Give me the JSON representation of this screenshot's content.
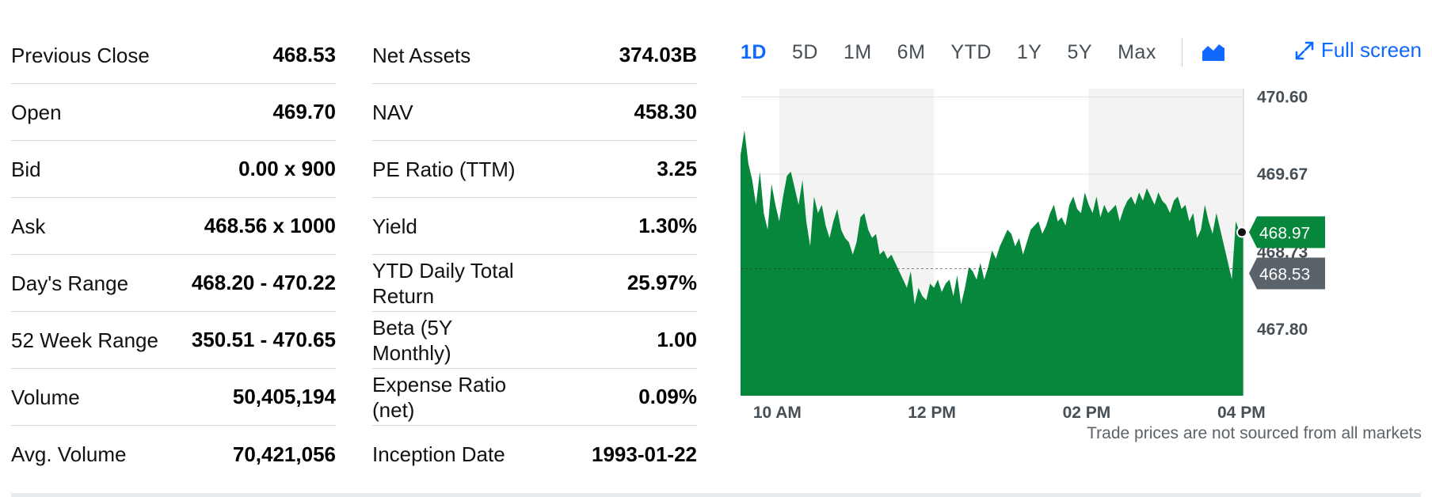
{
  "stats_left": [
    {
      "label": "Previous Close",
      "value": "468.53"
    },
    {
      "label": "Open",
      "value": "469.70"
    },
    {
      "label": "Bid",
      "value": "0.00 x 900"
    },
    {
      "label": "Ask",
      "value": "468.56 x 1000"
    },
    {
      "label": "Day's Range",
      "value": "468.20 - 470.22"
    },
    {
      "label": "52 Week Range",
      "value": "350.51 - 470.65"
    },
    {
      "label": "Volume",
      "value": "50,405,194"
    },
    {
      "label": "Avg. Volume",
      "value": "70,421,056"
    }
  ],
  "stats_right": [
    {
      "label": "Net Assets",
      "value": "374.03B"
    },
    {
      "label": "NAV",
      "value": "458.30"
    },
    {
      "label": "PE Ratio (TTM)",
      "value": "3.25"
    },
    {
      "label": "Yield",
      "value": "1.30%"
    },
    {
      "label": "YTD Daily Total Return",
      "value": "25.97%"
    },
    {
      "label": "Beta (5Y Monthly)",
      "value": "1.00"
    },
    {
      "label": "Expense Ratio (net)",
      "value": "0.09%"
    },
    {
      "label": "Inception Date",
      "value": "1993-01-22"
    }
  ],
  "range_tabs": [
    "1D",
    "5D",
    "1M",
    "6M",
    "YTD",
    "1Y",
    "5Y",
    "Max"
  ],
  "active_range": "1D",
  "chart_type_icon": "area-chart-icon",
  "fullscreen": {
    "label": "Full screen",
    "icon": "expand-icon"
  },
  "footnote": "Trade prices are not sourced from all markets",
  "colors": {
    "accent": "#0f69ff",
    "price_area": "#07873b",
    "prev_close_tag": "#5b636a",
    "session_shade": "#f3f3f3"
  },
  "chart_data": {
    "type": "area",
    "x_unit": "hours (9.5 = 9:30 AM, 16 = 4 PM)",
    "x_ticks": [
      {
        "x": 10,
        "label": "10 AM"
      },
      {
        "x": 12,
        "label": "12 PM"
      },
      {
        "x": 14,
        "label": "02 PM"
      },
      {
        "x": 16,
        "label": "04 PM"
      }
    ],
    "xlim": [
      9.5,
      16
    ],
    "y_ticks": [
      470.6,
      469.67,
      468.73,
      467.8
    ],
    "y_tick_labels": [
      "470.60",
      "469.67",
      "468.73",
      "467.80"
    ],
    "ylim": [
      467.0,
      470.7
    ],
    "grid": true,
    "shaded_bands": [
      [
        10,
        12
      ],
      [
        14,
        16
      ]
    ],
    "last_price": {
      "value": 468.97,
      "label": "468.97"
    },
    "previous_close": {
      "value": 468.53,
      "label": "468.53"
    },
    "price_series": {
      "x": [
        9.5,
        9.55,
        9.6,
        9.65,
        9.7,
        9.75,
        9.8,
        9.85,
        9.9,
        9.95,
        10.0,
        10.05,
        10.1,
        10.15,
        10.2,
        10.25,
        10.3,
        10.35,
        10.4,
        10.45,
        10.5,
        10.55,
        10.6,
        10.65,
        10.7,
        10.75,
        10.8,
        10.85,
        10.9,
        10.95,
        11.0,
        11.05,
        11.1,
        11.15,
        11.2,
        11.25,
        11.3,
        11.35,
        11.4,
        11.45,
        11.5,
        11.55,
        11.6,
        11.65,
        11.7,
        11.75,
        11.8,
        11.85,
        11.9,
        11.95,
        12.0,
        12.05,
        12.1,
        12.15,
        12.2,
        12.25,
        12.3,
        12.35,
        12.4,
        12.45,
        12.5,
        12.55,
        12.6,
        12.65,
        12.7,
        12.75,
        12.8,
        12.85,
        12.9,
        12.95,
        13.0,
        13.05,
        13.1,
        13.15,
        13.2,
        13.25,
        13.3,
        13.35,
        13.4,
        13.45,
        13.5,
        13.55,
        13.6,
        13.65,
        13.7,
        13.75,
        13.8,
        13.85,
        13.9,
        13.95,
        14.0,
        14.05,
        14.1,
        14.15,
        14.2,
        14.25,
        14.3,
        14.35,
        14.4,
        14.45,
        14.5,
        14.55,
        14.6,
        14.65,
        14.7,
        14.75,
        14.8,
        14.85,
        14.9,
        14.95,
        15.0,
        15.05,
        15.1,
        15.15,
        15.2,
        15.25,
        15.3,
        15.35,
        15.4,
        15.45,
        15.5,
        15.55,
        15.6,
        15.65,
        15.7,
        15.75,
        15.8,
        15.85,
        15.9,
        15.95,
        16.0
      ],
      "y": [
        469.9,
        470.2,
        469.8,
        469.6,
        469.3,
        469.7,
        469.2,
        469.0,
        469.55,
        469.3,
        469.1,
        469.4,
        469.65,
        469.7,
        469.5,
        469.3,
        469.6,
        469.1,
        468.8,
        469.4,
        469.2,
        469.3,
        469.05,
        468.9,
        469.1,
        469.25,
        469.0,
        468.9,
        468.85,
        468.7,
        468.85,
        469.15,
        469.2,
        469.0,
        468.9,
        468.95,
        468.7,
        468.75,
        468.65,
        468.7,
        468.6,
        468.5,
        468.4,
        468.3,
        468.5,
        468.1,
        468.3,
        468.2,
        468.15,
        468.35,
        468.3,
        468.4,
        468.25,
        468.35,
        468.4,
        468.2,
        468.45,
        468.1,
        468.3,
        468.55,
        468.5,
        468.4,
        468.6,
        468.4,
        468.55,
        468.75,
        468.65,
        468.8,
        468.9,
        469.0,
        468.95,
        468.8,
        468.9,
        468.7,
        468.85,
        469.0,
        469.05,
        469.1,
        468.95,
        469.05,
        469.2,
        469.3,
        469.1,
        469.15,
        469.05,
        469.3,
        469.4,
        469.25,
        469.2,
        469.45,
        469.3,
        469.2,
        469.4,
        469.15,
        469.3,
        469.2,
        469.25,
        469.3,
        469.1,
        469.25,
        469.35,
        469.4,
        469.3,
        469.45,
        469.35,
        469.5,
        469.4,
        469.3,
        469.45,
        469.35,
        469.3,
        469.2,
        469.35,
        469.4,
        469.25,
        469.3,
        469.1,
        469.2,
        468.9,
        469.0,
        469.3,
        469.1,
        468.95,
        469.2,
        469.0,
        468.8,
        468.6,
        468.4,
        469.1,
        468.97,
        468.97
      ]
    },
    "volume_note": "relative volume bars along the bottom"
  }
}
